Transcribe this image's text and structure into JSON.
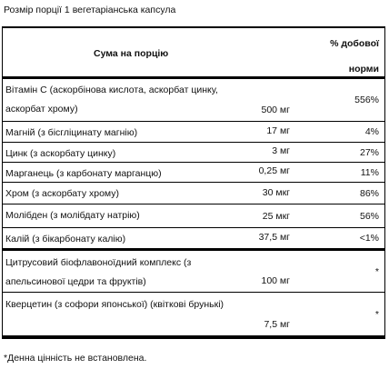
{
  "serving_size": "Розмір порції 1 вегетаріанська капсула",
  "table": {
    "header": {
      "amount": "Сума на порцію",
      "dv": [
        "% добової",
        "норми"
      ]
    },
    "rows": [
      {
        "name": [
          "Вітамін С (аскорбінова кислота, аскорбат цинку,",
          "аскорбат хрому)"
        ],
        "amount": "500 мг",
        "dv": "556%"
      },
      {
        "name": [
          "Магній (з бісгліцинату магнію)"
        ],
        "amount": "17 мг",
        "dv": "4%"
      },
      {
        "name": [
          "Цинк (з аскорбату цинку)"
        ],
        "amount": "3 мг",
        "dv": "27%"
      },
      {
        "name": [
          "Марганець (з карбонату марганцю)"
        ],
        "amount": "0,25 мг",
        "dv": "11%"
      },
      {
        "name": [
          "Хром (з аскорбату хрому)"
        ],
        "amount": "30 мкг",
        "dv": "86%"
      },
      {
        "name": [
          "Молібден (з молібдату натрію)"
        ],
        "amount": "25 мкг",
        "dv": "56%"
      },
      {
        "name": [
          "Калій (з бікарбонату калію)"
        ],
        "amount": "37,5 мг",
        "dv": "<1%"
      },
      {
        "name": [
          "Цитрусовий біофлавоноїдний комплекс (з",
          "апельсинової цедри та фруктів)"
        ],
        "amount": "100 мг",
        "dv": "*"
      },
      {
        "name": [
          "Кверцетин (з софори японської) (квіткові брунькі)",
          ""
        ],
        "amount": "7,5 мг",
        "dv": "*"
      }
    ]
  },
  "footnote": "*Денна цінність не встановлена."
}
